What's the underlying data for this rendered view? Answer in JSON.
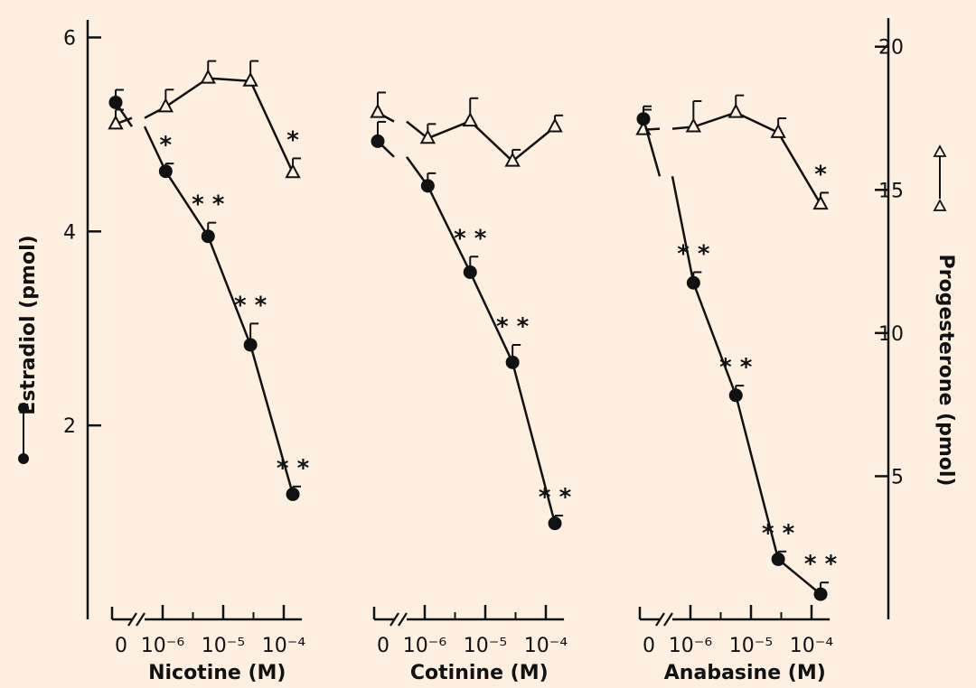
{
  "chart_data": {
    "type": "line",
    "y_left": {
      "label": "Estradiol (pmol)",
      "ticks": [
        2,
        4,
        6
      ],
      "range": [
        0,
        6.2
      ]
    },
    "y_right": {
      "label": "Progesterone (pmol)",
      "ticks": [
        5,
        10,
        15,
        20
      ],
      "range": [
        0,
        21
      ]
    },
    "x_tick_labels": [
      "0",
      "10⁻⁶",
      "10⁻⁵",
      "10⁻⁴"
    ],
    "panels": [
      {
        "xlabel": "Nicotine (M)",
        "estradiol": {
          "control": {
            "y": 5.33,
            "err": 0.13
          },
          "points": [
            {
              "logc": -5.95,
              "y": 4.62,
              "err": 0.08,
              "sig": "*"
            },
            {
              "logc": -5.25,
              "y": 3.95,
              "err": 0.14,
              "sig": "**"
            },
            {
              "logc": -4.55,
              "y": 2.83,
              "err": 0.22,
              "sig": "**"
            },
            {
              "logc": -3.85,
              "y": 1.29,
              "err": 0.08,
              "sig": "**"
            }
          ]
        },
        "progesterone": {
          "control": {
            "y": 17.3,
            "err": 0.5
          },
          "points": [
            {
              "logc": -5.95,
              "y": 17.9,
              "err": 0.6,
              "sig": ""
            },
            {
              "logc": -5.25,
              "y": 18.9,
              "err": 0.6,
              "sig": ""
            },
            {
              "logc": -4.55,
              "y": 18.8,
              "err": 0.7,
              "sig": ""
            },
            {
              "logc": -3.85,
              "y": 15.6,
              "err": 0.5,
              "sig": "*"
            }
          ]
        }
      },
      {
        "xlabel": "Cotinine (M)",
        "estradiol": {
          "control": {
            "y": 4.93,
            "err": 0.2
          },
          "points": [
            {
              "logc": -5.95,
              "y": 4.47,
              "err": 0.13,
              "sig": ""
            },
            {
              "logc": -5.25,
              "y": 3.58,
              "err": 0.16,
              "sig": "**"
            },
            {
              "logc": -4.55,
              "y": 2.65,
              "err": 0.18,
              "sig": "**"
            },
            {
              "logc": -3.85,
              "y": 0.99,
              "err": 0.08,
              "sig": "**"
            }
          ]
        },
        "progesterone": {
          "control": {
            "y": 17.7,
            "err": 0.7
          },
          "points": [
            {
              "logc": -5.95,
              "y": 16.8,
              "err": 0.5,
              "sig": ""
            },
            {
              "logc": -5.25,
              "y": 17.4,
              "err": 0.8,
              "sig": ""
            },
            {
              "logc": -4.55,
              "y": 16.0,
              "err": 0.4,
              "sig": ""
            },
            {
              "logc": -3.85,
              "y": 17.2,
              "err": 0.4,
              "sig": ""
            }
          ]
        }
      },
      {
        "xlabel": "Anabasine (M)",
        "estradiol": {
          "control": {
            "y": 5.16,
            "err": 0.13
          },
          "points": [
            {
              "logc": -5.95,
              "y": 3.47,
              "err": 0.11,
              "sig": "**"
            },
            {
              "logc": -5.25,
              "y": 2.31,
              "err": 0.1,
              "sig": "**"
            },
            {
              "logc": -4.55,
              "y": 0.62,
              "err": 0.08,
              "sig": "**"
            },
            {
              "logc": -3.85,
              "y": 0.26,
              "err": 0.12,
              "sig": "**"
            }
          ]
        },
        "progesterone": {
          "control": {
            "y": 17.1,
            "err": 0.7
          },
          "points": [
            {
              "logc": -5.95,
              "y": 17.2,
              "err": 0.9,
              "sig": ""
            },
            {
              "logc": -5.25,
              "y": 17.7,
              "err": 0.6,
              "sig": ""
            },
            {
              "logc": -4.55,
              "y": 17.0,
              "err": 0.5,
              "sig": ""
            },
            {
              "logc": -3.85,
              "y": 14.5,
              "err": 0.4,
              "sig": "*"
            }
          ]
        }
      }
    ]
  }
}
